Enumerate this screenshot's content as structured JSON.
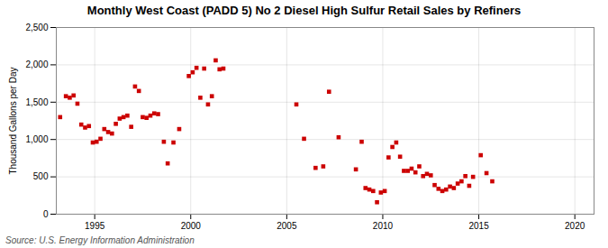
{
  "chart_data": {
    "type": "scatter",
    "title": "Monthly West Coast (PADD 5) No 2 Diesel High Sulfur Retail Sales by Refiners",
    "ylabel": "Thousand Gallons per Day",
    "source": "Source: U.S. Energy Information Administration",
    "color": "#cc0000",
    "marker": "square",
    "grid": true,
    "xlim": [
      1993,
      2021
    ],
    "ylim": [
      0,
      2500
    ],
    "xticks": [
      1995,
      2000,
      2005,
      2010,
      2015,
      2020
    ],
    "yticks": [
      0,
      500,
      {
        "value": 1000,
        "label": "1,000"
      },
      {
        "value": 1500,
        "label": "1,500"
      },
      {
        "value": 2000,
        "label": "2,000"
      },
      {
        "value": 2500,
        "label": "2,500"
      }
    ],
    "x": [
      1993.2,
      1993.5,
      1993.7,
      1993.9,
      1994.1,
      1994.3,
      1994.5,
      1994.7,
      1994.9,
      1995.1,
      1995.3,
      1995.5,
      1995.7,
      1995.9,
      1996.1,
      1996.3,
      1996.5,
      1996.7,
      1996.9,
      1997.1,
      1997.3,
      1997.5,
      1997.7,
      1997.9,
      1998.1,
      1998.3,
      1998.6,
      1998.8,
      1999.1,
      1999.4,
      1999.9,
      2000.1,
      2000.3,
      2000.5,
      2000.7,
      2000.9,
      2001.1,
      2001.3,
      2001.5,
      2001.7,
      2005.5,
      2005.9,
      2006.5,
      2006.9,
      2007.2,
      2007.7,
      2008.6,
      2008.9,
      2009.1,
      2009.3,
      2009.5,
      2009.7,
      2009.9,
      2010.1,
      2010.3,
      2010.5,
      2010.7,
      2010.9,
      2011.1,
      2011.3,
      2011.5,
      2011.7,
      2011.9,
      2012.1,
      2012.3,
      2012.5,
      2012.7,
      2012.9,
      2013.1,
      2013.3,
      2013.5,
      2013.7,
      2013.9,
      2014.1,
      2014.3,
      2014.5,
      2014.7,
      2015.1,
      2015.4,
      2015.7
    ],
    "values": [
      1300,
      1580,
      1560,
      1590,
      1480,
      1200,
      1160,
      1180,
      960,
      970,
      1010,
      1140,
      1100,
      1080,
      1210,
      1280,
      1300,
      1320,
      1170,
      1710,
      1650,
      1300,
      1290,
      1320,
      1350,
      1340,
      970,
      680,
      960,
      1140,
      1850,
      1900,
      1960,
      1560,
      1950,
      1470,
      1580,
      2060,
      1940,
      1950,
      1470,
      1010,
      620,
      640,
      1640,
      1030,
      600,
      970,
      350,
      330,
      310,
      160,
      290,
      310,
      760,
      900,
      960,
      770,
      580,
      580,
      610,
      560,
      640,
      510,
      540,
      520,
      390,
      340,
      310,
      330,
      370,
      350,
      410,
      440,
      510,
      380,
      500,
      790,
      550,
      440
    ]
  }
}
